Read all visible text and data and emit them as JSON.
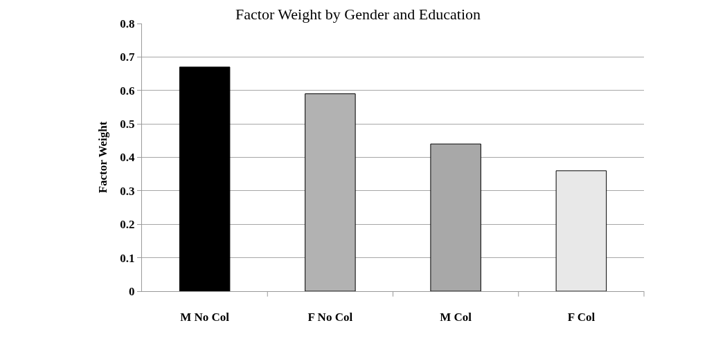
{
  "chart_data": {
    "type": "bar",
    "title": "Factor Weight by Gender and Education",
    "ylabel": "Factor Weight",
    "categories": [
      "M No Col",
      "F No Col",
      "M Col",
      "F Col"
    ],
    "values": [
      0.67,
      0.59,
      0.44,
      0.36
    ],
    "colors": [
      "#000000",
      "#b2b2b2",
      "#a8a8a8",
      "#e8e8e8"
    ],
    "ylim": [
      0,
      0.8
    ],
    "yticks": [
      {
        "value": 0,
        "label": "0"
      },
      0.1,
      0.2,
      0.3,
      0.4,
      0.5,
      0.6,
      0.7,
      0.8
    ],
    "grid": "y"
  }
}
